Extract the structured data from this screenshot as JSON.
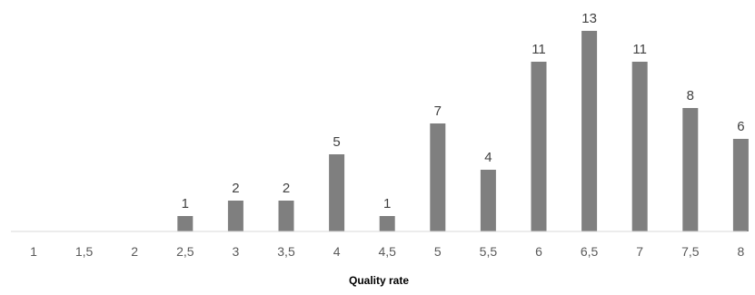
{
  "chart_data": {
    "type": "bar",
    "title": "",
    "xlabel": "Quality rate",
    "ylabel": "",
    "categories": [
      "1",
      "1,5",
      "2",
      "2,5",
      "3",
      "3,5",
      "4",
      "4,5",
      "5",
      "5,5",
      "6",
      "6,5",
      "7",
      "7,5",
      "8"
    ],
    "values": [
      0,
      0,
      0,
      1,
      2,
      2,
      5,
      1,
      7,
      4,
      11,
      13,
      11,
      8,
      6
    ],
    "value_labels": [
      "",
      "",
      "",
      "1",
      "2",
      "2",
      "5",
      "1",
      "7",
      "4",
      "11",
      "13",
      "11",
      "8",
      "6"
    ],
    "ylim": [
      0,
      13
    ],
    "grid": false,
    "legend": "none",
    "bar_color": "#7f7f7f",
    "axis_color": "#d9d9d9"
  }
}
